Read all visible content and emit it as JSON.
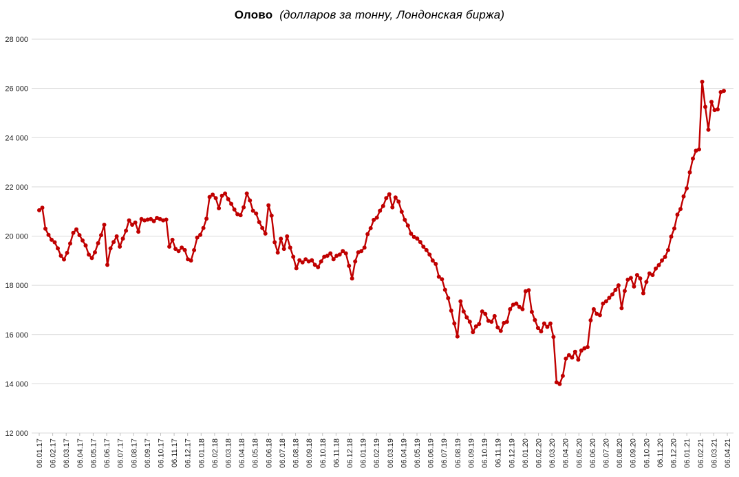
{
  "title": {
    "main": "Олово",
    "subtitle": "(долларов за тонну, Лондонская биржа)"
  },
  "chart_data": {
    "type": "line",
    "title": "Олово (долларов за тонну, Лондонская биржа)",
    "series_name": "Олово",
    "unit": "долларов за тонну",
    "exchange": "Лондонская биржа",
    "xlabel": "",
    "ylabel": "",
    "ylim": [
      12000,
      28000
    ],
    "ytick_step": 2000,
    "grid": true,
    "legend_position": "none",
    "markers": true,
    "y_tick_values": [
      28000,
      26000,
      24000,
      22000,
      20000,
      18000,
      16000,
      14000,
      12000
    ],
    "y_tick_labels": [
      "28 000",
      "26 000",
      "24 000",
      "22 000",
      "20 000",
      "18 000",
      "16 000",
      "14 000",
      "12 000"
    ],
    "x_labels": [
      "06.01.17",
      "06.02.17",
      "06.03.17",
      "06.04.17",
      "06.05.17",
      "06.06.17",
      "06.07.17",
      "06.08.17",
      "06.09.17",
      "06.10.17",
      "06.11.17",
      "06.12.17",
      "06.01.18",
      "06.02.18",
      "06.03.18",
      "06.04.18",
      "06.05.18",
      "06.06.18",
      "06.07.18",
      "06.08.18",
      "06.09.18",
      "06.10.18",
      "06.11.18",
      "06.12.18",
      "06.01.19",
      "06.02.19",
      "06.03.19",
      "06.04.19",
      "06.05.19",
      "06.06.19",
      "06.07.19",
      "06.08.19",
      "06.09.19",
      "06.10.19",
      "06.11.19",
      "06.12.19",
      "06.01.20",
      "06.02.20",
      "06.03.20",
      "06.04.20",
      "06.05.20",
      "06.06.20",
      "06.07.20",
      "06.08.20",
      "06.09.20",
      "06.10.20",
      "06.11.20",
      "06.12.20",
      "06.01.21",
      "06.02.21",
      "06.03.21",
      "06.04.21"
    ],
    "values": [
      21050,
      21150,
      20300,
      20050,
      19850,
      19750,
      19500,
      19200,
      19050,
      19320,
      19700,
      20130,
      20270,
      20040,
      19820,
      19620,
      19250,
      19110,
      19340,
      19710,
      20040,
      20460,
      18830,
      19500,
      19760,
      19990,
      19570,
      19900,
      20220,
      20640,
      20460,
      20550,
      20180,
      20690,
      20640,
      20670,
      20690,
      20610,
      20740,
      20690,
      20640,
      20670,
      19570,
      19850,
      19480,
      19390,
      19530,
      19430,
      19060,
      19010,
      19430,
      19940,
      20050,
      20330,
      20710,
      21590,
      21680,
      21540,
      21130,
      21640,
      21730,
      21500,
      21310,
      21080,
      20890,
      20850,
      21170,
      21730,
      21450,
      21030,
      20920,
      20570,
      20330,
      20100,
      21250,
      20830,
      19750,
      19330,
      19890,
      19480,
      19990,
      19530,
      19160,
      18690,
      19020,
      18930,
      19060,
      18970,
      19020,
      18830,
      18740,
      18970,
      19160,
      19200,
      19300,
      19060,
      19200,
      19250,
      19390,
      19300,
      18790,
      18280,
      18970,
      19340,
      19390,
      19530,
      20080,
      20320,
      20660,
      20750,
      21030,
      21220,
      21540,
      21700,
      21170,
      21570,
      21400,
      20990,
      20660,
      20430,
      20100,
      19960,
      19900,
      19760,
      19570,
      19430,
      19250,
      19010,
      18870,
      18350,
      18250,
      17820,
      17480,
      16970,
      16450,
      15920,
      17350,
      16940,
      16700,
      16520,
      16100,
      16330,
      16430,
      16940,
      16840,
      16560,
      16520,
      16750,
      16290,
      16150,
      16470,
      16520,
      17030,
      17210,
      17260,
      17120,
      17030,
      17760,
      17800,
      16920,
      16590,
      16270,
      16130,
      16450,
      16310,
      16450,
      15900,
      14060,
      13990,
      14320,
      15020,
      15160,
      15070,
      15300,
      14980,
      15350,
      15440,
      15490,
      16580,
      17030,
      16840,
      16790,
      17260,
      17350,
      17490,
      17630,
      17810,
      18000,
      17070,
      17770,
      18230,
      18300,
      17950,
      18420,
      18280,
      17680,
      18140,
      18480,
      18420,
      18680,
      18820,
      19010,
      19150,
      19430,
      19980,
      20310,
      20870,
      21100,
      21610,
      21940,
      22590,
      23150,
      23470,
      23520,
      26270,
      25250,
      24320,
      25450,
      25120,
      25150,
      25850,
      25900
    ],
    "colors": {
      "line": "#C00000",
      "marker": "#C00000",
      "grid": "#D9D9D9",
      "tick": "#BFBFBF",
      "text": "#1a1a1a"
    }
  }
}
